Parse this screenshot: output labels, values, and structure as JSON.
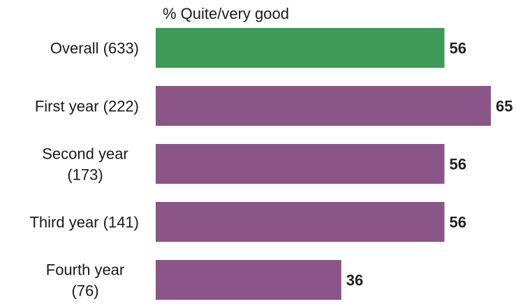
{
  "chart_data": {
    "type": "bar",
    "orientation": "horizontal",
    "series_title": "% Quite/very good",
    "categories": [
      [
        "Overall (633)"
      ],
      [
        "First year (222)"
      ],
      [
        "Second year",
        "(173)"
      ],
      [
        "Third year (141)"
      ],
      [
        "Fourth year",
        "(76)"
      ]
    ],
    "values": [
      56,
      65,
      56,
      56,
      36
    ],
    "colors": [
      "#3d9a57",
      "#8a5687",
      "#8a5687",
      "#8a5687",
      "#8a5687"
    ],
    "xlim": [
      0,
      65
    ],
    "grid": false,
    "legend": "none"
  }
}
